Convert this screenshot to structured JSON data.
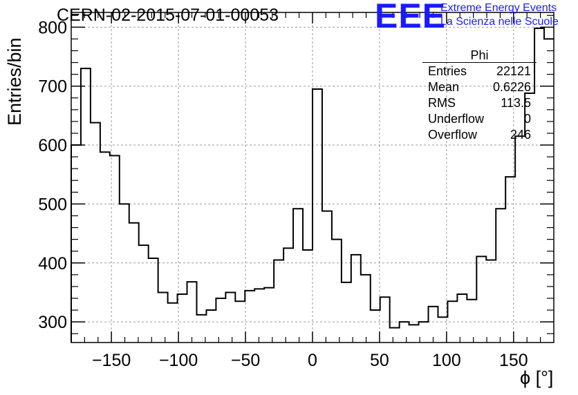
{
  "header": {
    "run_title": "CERN-02-2015-07-01-00053",
    "logo_mark": "EEE",
    "logo_line1": "Extreme Energy Events",
    "logo_line2": "La Scienza nelle Scuole"
  },
  "stats_box": {
    "title": "Phi",
    "rows": [
      {
        "label": "Entries",
        "value": "22121"
      },
      {
        "label": "Mean",
        "value": "0.6226"
      },
      {
        "label": "RMS",
        "value": "113.5"
      },
      {
        "label": "Underflow",
        "value": "0"
      },
      {
        "label": "Overflow",
        "value": "246"
      }
    ]
  },
  "colors": {
    "line": "#000000",
    "grid": "#9a9a9a",
    "accent": "#1a1aff"
  },
  "chart_data": {
    "type": "histogram",
    "title": "CERN-02-2015-07-01-00053",
    "xlabel": "ϕ [°]",
    "ylabel": "Entries/bin",
    "xlim": [
      -180,
      180
    ],
    "ylim": [
      265,
      825
    ],
    "bin_width": 7.2,
    "grid": true,
    "x_ticks": [
      -150,
      -100,
      -50,
      0,
      50,
      100,
      150
    ],
    "x_tick_labels": [
      "−150",
      "−100",
      "−50",
      "0",
      "50",
      "100",
      "150"
    ],
    "y_ticks": [
      300,
      400,
      500,
      600,
      700,
      800
    ],
    "y_tick_labels": [
      "300",
      "400",
      "500",
      "600",
      "700",
      "800"
    ],
    "values": [
      600,
      730,
      638,
      588,
      582,
      500,
      468,
      430,
      408,
      350,
      332,
      347,
      368,
      312,
      320,
      340,
      350,
      335,
      353,
      356,
      358,
      405,
      425,
      492,
      422,
      695,
      488,
      440,
      367,
      414,
      380,
      320,
      342,
      290,
      300,
      295,
      300,
      326,
      308,
      335,
      347,
      338,
      411,
      405,
      492,
      546,
      615,
      688,
      798,
      780
    ]
  }
}
